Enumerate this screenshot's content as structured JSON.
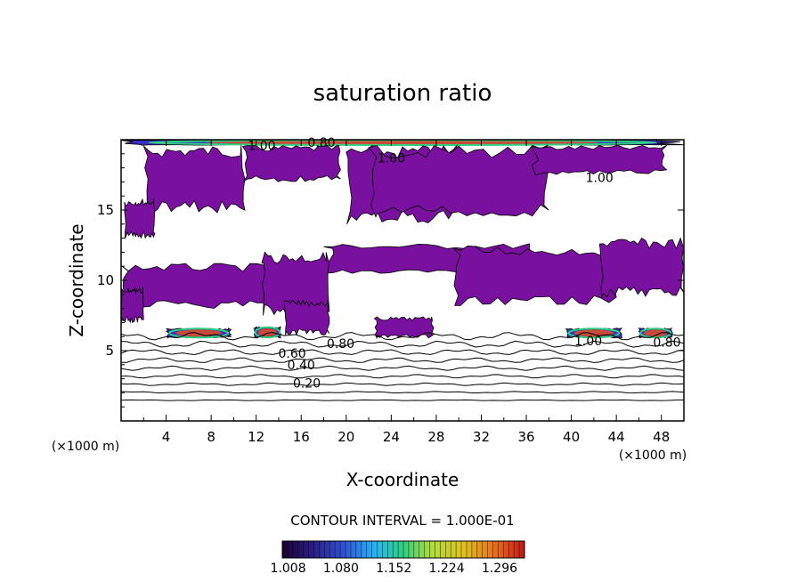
{
  "chart_data": {
    "type": "contour",
    "title": "saturation ratio",
    "xlabel": "X-coordinate",
    "ylabel": "Z-coordinate",
    "x_unit": "(×1000 m)",
    "x_unit_right": "(×1000 m)",
    "x_ticks": [
      4,
      8,
      12,
      16,
      20,
      24,
      28,
      32,
      36,
      40,
      44,
      48
    ],
    "y_ticks": [
      5,
      10,
      15
    ],
    "xlim": [
      0,
      50
    ],
    "ylim": [
      0,
      20
    ],
    "contour_interval_text": "CONTOUR INTERVAL = 1.000E-01",
    "contour_labels": [
      {
        "text": "0.20",
        "x": 16.5,
        "y": 2.7
      },
      {
        "text": "0.40",
        "x": 16.0,
        "y": 4.0
      },
      {
        "text": "0.60",
        "x": 15.2,
        "y": 4.8
      },
      {
        "text": "0.80",
        "x": 19.5,
        "y": 5.5
      },
      {
        "text": "0.80",
        "x": 48.5,
        "y": 5.6
      },
      {
        "text": "1.00",
        "x": 41.5,
        "y": 5.7
      },
      {
        "text": "1.00",
        "x": 12.5,
        "y": 19.6
      },
      {
        "text": "0.80",
        "x": 17.8,
        "y": 19.8
      },
      {
        "text": "1.00",
        "x": 24.0,
        "y": 18.7
      },
      {
        "text": "1.00",
        "x": 42.5,
        "y": 17.3
      }
    ],
    "contour_levels": [
      0.1,
      0.2,
      0.3,
      0.4,
      0.5,
      0.6,
      0.7,
      0.8,
      0.9
    ],
    "colorbar": {
      "ticks": [
        "1.008",
        "1.080",
        "1.152",
        "1.224",
        "1.296"
      ],
      "min": 1.0,
      "max": 1.33,
      "colors": [
        "#1a0030",
        "#2a1a8a",
        "#3050d0",
        "#30b0f0",
        "#30d080",
        "#b0e030",
        "#e0c020",
        "#e07020",
        "#c01818"
      ]
    },
    "supersaturated_regions": [
      {
        "x": [
          0,
          50
        ],
        "y": [
          19.6,
          20.0
        ]
      },
      {
        "x": [
          2.0,
          11.0
        ],
        "y": [
          14.8,
          19.6
        ]
      },
      {
        "x": [
          10.8,
          19.5
        ],
        "y": [
          17.0,
          19.6
        ]
      },
      {
        "x": [
          0.3,
          3.0
        ],
        "y": [
          13.0,
          15.8
        ]
      },
      {
        "x": [
          20.0,
          30.0
        ],
        "y": [
          14.0,
          19.6
        ]
      },
      {
        "x": [
          18.0,
          36.5
        ],
        "y": [
          10.5,
          12.6
        ]
      },
      {
        "x": [
          22.0,
          38.0
        ],
        "y": [
          14.5,
          19.6
        ]
      },
      {
        "x": [
          36.5,
          48.5
        ],
        "y": [
          17.5,
          19.6
        ]
      },
      {
        "x": [
          0.0,
          14.0
        ],
        "y": [
          8.0,
          11.2
        ]
      },
      {
        "x": [
          12.5,
          18.5
        ],
        "y": [
          7.5,
          12.0
        ]
      },
      {
        "x": [
          29.5,
          44.0
        ],
        "y": [
          8.2,
          12.5
        ]
      },
      {
        "x": [
          42.5,
          50.0
        ],
        "y": [
          8.8,
          13.0
        ]
      },
      {
        "x": [
          0.0,
          2.0
        ],
        "y": [
          7.0,
          9.5
        ]
      },
      {
        "x": [
          4.0,
          9.8
        ],
        "y": [
          5.9,
          6.6
        ]
      },
      {
        "x": [
          11.8,
          14.2
        ],
        "y": [
          5.9,
          6.7
        ]
      },
      {
        "x": [
          14.5,
          18.5
        ],
        "y": [
          6.1,
          8.6
        ]
      },
      {
        "x": [
          22.5,
          27.8
        ],
        "y": [
          5.9,
          7.4
        ]
      },
      {
        "x": [
          39.5,
          44.5
        ],
        "y": [
          5.9,
          6.6
        ]
      },
      {
        "x": [
          46.0,
          49.0
        ],
        "y": [
          5.9,
          6.6
        ]
      }
    ]
  }
}
